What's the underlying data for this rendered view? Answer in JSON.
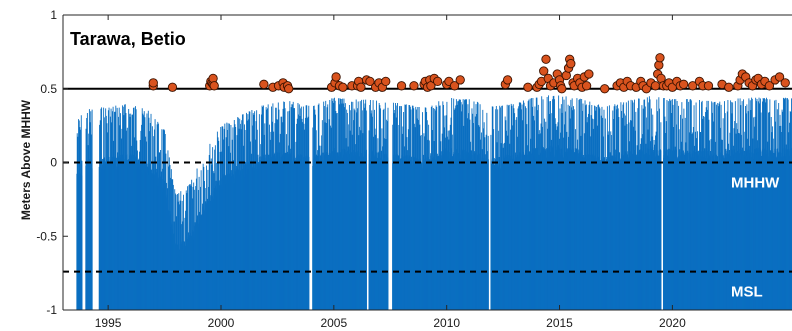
{
  "chart_data": {
    "type": "bar",
    "title": "",
    "inset_label": "Tarawa, Betio",
    "xlabel": "",
    "ylabel": "Meters Above MHHW",
    "xlim": [
      1993.0,
      2025.3
    ],
    "ylim": [
      -1,
      1
    ],
    "x_ticks": [
      "1995",
      "2000",
      "2005",
      "2010",
      "2015",
      "2020"
    ],
    "y_ticks": [
      "1",
      "0.5",
      "0",
      "-0.5",
      "-1"
    ],
    "grid": false,
    "colors": {
      "bars": "#0b6fc1",
      "markers": "#d9531e",
      "marker_edge": "#3a1200"
    },
    "reference_lines": [
      {
        "value": 0.5,
        "label": "",
        "style": "solid"
      },
      {
        "value": 0.0,
        "label": "MHHW",
        "style": "dashed"
      },
      {
        "value": -0.74,
        "label": "MSL",
        "style": "dashed"
      }
    ],
    "data_gaps": [
      [
        1993.45,
        1993.6
      ],
      [
        1993.85,
        1994.0
      ],
      [
        1994.3,
        1994.6
      ],
      [
        2003.9,
        2004.05
      ],
      [
        2006.45,
        2006.55
      ],
      [
        2007.4,
        2007.6
      ],
      [
        2011.85,
        2011.95
      ],
      [
        2019.5,
        2019.6
      ]
    ],
    "envelope": [
      [
        1993.6,
        0.28
      ],
      [
        1994.0,
        0.36
      ],
      [
        1995.0,
        0.38
      ],
      [
        1996.0,
        0.4
      ],
      [
        1996.8,
        0.35
      ],
      [
        1997.5,
        0.22
      ],
      [
        1998.0,
        -0.22
      ],
      [
        1998.6,
        -0.15
      ],
      [
        1999.2,
        0.05
      ],
      [
        2000.0,
        0.25
      ],
      [
        2001.0,
        0.33
      ],
      [
        2002.0,
        0.4
      ],
      [
        2003.0,
        0.42
      ],
      [
        2004.0,
        0.38
      ],
      [
        2005.0,
        0.44
      ],
      [
        2006.0,
        0.43
      ],
      [
        2007.0,
        0.42
      ],
      [
        2008.0,
        0.4
      ],
      [
        2009.0,
        0.37
      ],
      [
        2010.0,
        0.44
      ],
      [
        2011.0,
        0.43
      ],
      [
        2012.0,
        0.38
      ],
      [
        2013.0,
        0.4
      ],
      [
        2014.0,
        0.45
      ],
      [
        2015.0,
        0.46
      ],
      [
        2016.0,
        0.43
      ],
      [
        2017.0,
        0.38
      ],
      [
        2018.0,
        0.42
      ],
      [
        2019.0,
        0.45
      ],
      [
        2020.0,
        0.43
      ],
      [
        2021.0,
        0.43
      ],
      [
        2022.0,
        0.41
      ],
      [
        2023.0,
        0.44
      ],
      [
        2024.0,
        0.44
      ],
      [
        2025.3,
        0.44
      ]
    ],
    "exceedance_points": [
      [
        1997.0,
        0.52
      ],
      [
        1997.0,
        0.54
      ],
      [
        1997.85,
        0.51
      ],
      [
        1999.5,
        0.52
      ],
      [
        1999.55,
        0.55
      ],
      [
        1999.6,
        0.54
      ],
      [
        1999.65,
        0.53
      ],
      [
        1999.65,
        0.57
      ],
      [
        1999.7,
        0.52
      ],
      [
        2001.9,
        0.53
      ],
      [
        2002.3,
        0.51
      ],
      [
        2002.55,
        0.52
      ],
      [
        2002.75,
        0.54
      ],
      [
        2002.8,
        0.51
      ],
      [
        2002.95,
        0.52
      ],
      [
        2003.0,
        0.5
      ],
      [
        2004.9,
        0.51
      ],
      [
        2005.05,
        0.54
      ],
      [
        2005.1,
        0.58
      ],
      [
        2005.25,
        0.52
      ],
      [
        2005.4,
        0.51
      ],
      [
        2005.8,
        0.52
      ],
      [
        2006.05,
        0.52
      ],
      [
        2006.1,
        0.55
      ],
      [
        2006.2,
        0.51
      ],
      [
        2006.45,
        0.56
      ],
      [
        2006.6,
        0.55
      ],
      [
        2006.85,
        0.51
      ],
      [
        2007.0,
        0.54
      ],
      [
        2007.15,
        0.51
      ],
      [
        2007.3,
        0.55
      ],
      [
        2008.0,
        0.52
      ],
      [
        2008.55,
        0.52
      ],
      [
        2009.0,
        0.53
      ],
      [
        2009.05,
        0.55
      ],
      [
        2009.15,
        0.51
      ],
      [
        2009.25,
        0.56
      ],
      [
        2009.3,
        0.52
      ],
      [
        2009.45,
        0.57
      ],
      [
        2009.6,
        0.55
      ],
      [
        2010.0,
        0.53
      ],
      [
        2010.1,
        0.55
      ],
      [
        2010.35,
        0.52
      ],
      [
        2010.6,
        0.56
      ],
      [
        2012.6,
        0.53
      ],
      [
        2012.7,
        0.56
      ],
      [
        2013.6,
        0.51
      ],
      [
        2014.0,
        0.51
      ],
      [
        2014.1,
        0.53
      ],
      [
        2014.2,
        0.55
      ],
      [
        2014.3,
        0.62
      ],
      [
        2014.4,
        0.7
      ],
      [
        2014.5,
        0.57
      ],
      [
        2014.6,
        0.52
      ],
      [
        2014.75,
        0.54
      ],
      [
        2014.9,
        0.6
      ],
      [
        2015.0,
        0.56
      ],
      [
        2015.05,
        0.52
      ],
      [
        2015.1,
        0.5
      ],
      [
        2015.3,
        0.59
      ],
      [
        2015.4,
        0.64
      ],
      [
        2015.45,
        0.7
      ],
      [
        2015.5,
        0.67
      ],
      [
        2015.6,
        0.54
      ],
      [
        2015.65,
        0.52
      ],
      [
        2015.8,
        0.57
      ],
      [
        2015.9,
        0.54
      ],
      [
        2016.0,
        0.51
      ],
      [
        2016.1,
        0.58
      ],
      [
        2016.2,
        0.52
      ],
      [
        2016.3,
        0.6
      ],
      [
        2017.0,
        0.5
      ],
      [
        2017.55,
        0.52
      ],
      [
        2017.7,
        0.54
      ],
      [
        2017.85,
        0.51
      ],
      [
        2018.0,
        0.55
      ],
      [
        2018.15,
        0.52
      ],
      [
        2018.4,
        0.51
      ],
      [
        2018.6,
        0.55
      ],
      [
        2018.7,
        0.52
      ],
      [
        2018.85,
        0.5
      ],
      [
        2019.05,
        0.54
      ],
      [
        2019.25,
        0.52
      ],
      [
        2019.35,
        0.6
      ],
      [
        2019.4,
        0.66
      ],
      [
        2019.45,
        0.71
      ],
      [
        2019.5,
        0.57
      ],
      [
        2019.6,
        0.52
      ],
      [
        2019.75,
        0.52
      ],
      [
        2019.85,
        0.54
      ],
      [
        2020.0,
        0.51
      ],
      [
        2020.2,
        0.55
      ],
      [
        2020.35,
        0.52
      ],
      [
        2020.5,
        0.53
      ],
      [
        2020.9,
        0.52
      ],
      [
        2021.2,
        0.55
      ],
      [
        2021.35,
        0.52
      ],
      [
        2021.6,
        0.52
      ],
      [
        2022.2,
        0.53
      ],
      [
        2022.5,
        0.51
      ],
      [
        2022.9,
        0.52
      ],
      [
        2023.0,
        0.56
      ],
      [
        2023.1,
        0.6
      ],
      [
        2023.25,
        0.58
      ],
      [
        2023.4,
        0.54
      ],
      [
        2023.55,
        0.52
      ],
      [
        2023.7,
        0.56
      ],
      [
        2023.8,
        0.57
      ],
      [
        2023.95,
        0.53
      ],
      [
        2024.1,
        0.55
      ],
      [
        2024.3,
        0.52
      ],
      [
        2024.55,
        0.56
      ],
      [
        2024.75,
        0.58
      ],
      [
        2025.0,
        0.54
      ]
    ]
  }
}
